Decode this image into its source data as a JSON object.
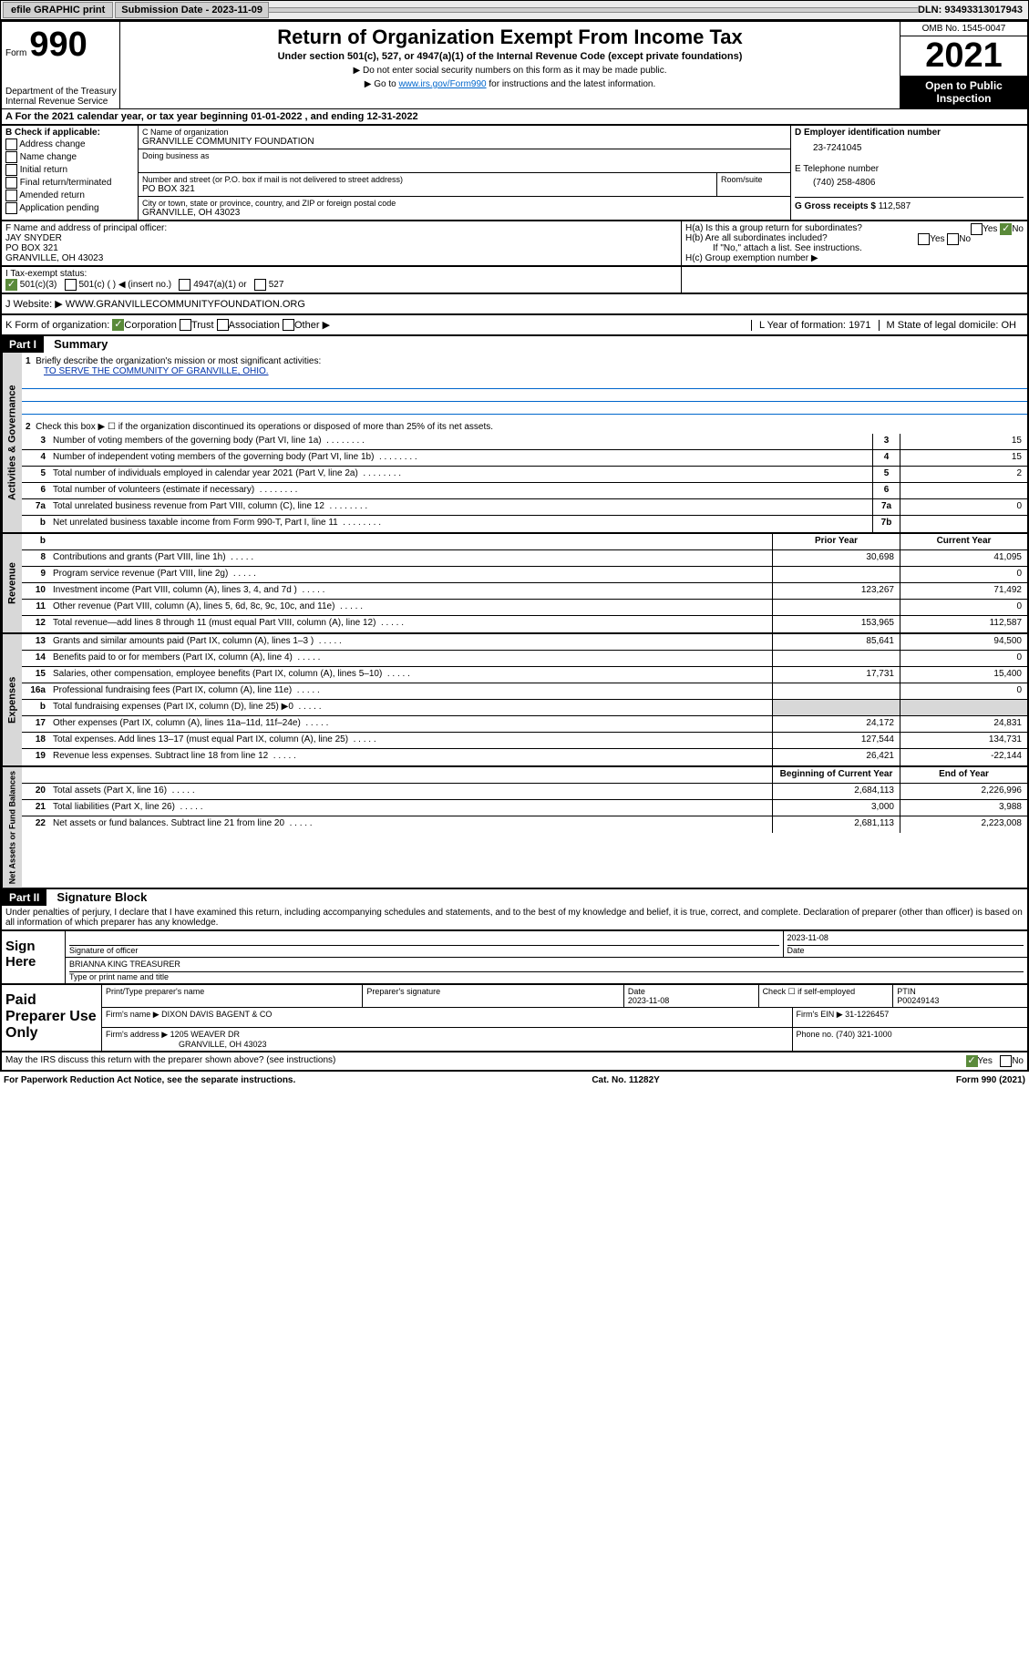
{
  "top_bar": {
    "efile": "efile GRAPHIC print",
    "sub_label": "Submission Date - 2023-11-09",
    "dln": "DLN: 93493313017943"
  },
  "header": {
    "form_word": "Form",
    "form_num": "990",
    "dept": "Department of the Treasury\nInternal Revenue Service",
    "title": "Return of Organization Exempt From Income Tax",
    "subtitle": "Under section 501(c), 527, or 4947(a)(1) of the Internal Revenue Code (except private foundations)",
    "note1": "▶ Do not enter social security numbers on this form as it may be made public.",
    "note2_pre": "▶ Go to ",
    "note2_link": "www.irs.gov/Form990",
    "note2_post": " for instructions and the latest information.",
    "omb": "OMB No. 1545-0047",
    "year": "2021",
    "inspect": "Open to Public Inspection"
  },
  "row_a": "A For the 2021 calendar year, or tax year beginning 01-01-2022  , and ending 12-31-2022",
  "box_b": {
    "label": "B Check if applicable:",
    "items": [
      "Address change",
      "Name change",
      "Initial return",
      "Final return/terminated",
      "Amended return",
      "Application pending"
    ]
  },
  "box_c": {
    "name_label": "C Name of organization",
    "name": "GRANVILLE COMMUNITY FOUNDATION",
    "dba_label": "Doing business as",
    "street_label": "Number and street (or P.O. box if mail is not delivered to street address)",
    "room_label": "Room/suite",
    "street": "PO BOX 321",
    "city_label": "City or town, state or province, country, and ZIP or foreign postal code",
    "city": "GRANVILLE, OH  43023"
  },
  "box_d": {
    "label": "D Employer identification number",
    "val": "23-7241045"
  },
  "box_e": {
    "label": "E Telephone number",
    "val": "(740) 258-4806"
  },
  "box_g": {
    "label": "G Gross receipts $",
    "val": "112,587"
  },
  "box_f": {
    "label": "F Name and address of principal officer:",
    "name": "JAY SNYDER",
    "addr1": "PO BOX 321",
    "addr2": "GRANVILLE, OH  43023"
  },
  "box_h": {
    "ha": "H(a)  Is this a group return for subordinates?",
    "hb": "H(b)  Are all subordinates included?",
    "hb_note": "If \"No,\" attach a list. See instructions.",
    "hc": "H(c)  Group exemption number ▶",
    "yes": "Yes",
    "no": "No"
  },
  "box_i": {
    "label": "I  Tax-exempt status:",
    "opts": [
      "501(c)(3)",
      "501(c) (  ) ◀ (insert no.)",
      "4947(a)(1) or",
      "527"
    ]
  },
  "box_j": {
    "label": "J  Website: ▶",
    "val": "WWW.GRANVILLECOMMUNITYFOUNDATION.ORG"
  },
  "box_k": {
    "label": "K Form of organization:",
    "opts": [
      "Corporation",
      "Trust",
      "Association",
      "Other ▶"
    ]
  },
  "box_l": {
    "label": "L Year of formation:",
    "val": "1971"
  },
  "box_m": {
    "label": "M State of legal domicile:",
    "val": "OH"
  },
  "part1": {
    "header": "Part I",
    "title": "Summary"
  },
  "summary": {
    "q1": "Briefly describe the organization's mission or most significant activities:",
    "q1_val": "TO SERVE THE COMMUNITY OF GRANVILLE, OHIO.",
    "q2": "Check this box ▶ ☐ if the organization discontinued its operations or disposed of more than 25% of its net assets.",
    "rows_gov": [
      {
        "n": "3",
        "label": "Number of voting members of the governing body (Part VI, line 1a)",
        "box": "3",
        "val": "15"
      },
      {
        "n": "4",
        "label": "Number of independent voting members of the governing body (Part VI, line 1b)",
        "box": "4",
        "val": "15"
      },
      {
        "n": "5",
        "label": "Total number of individuals employed in calendar year 2021 (Part V, line 2a)",
        "box": "5",
        "val": "2"
      },
      {
        "n": "6",
        "label": "Total number of volunteers (estimate if necessary)",
        "box": "6",
        "val": ""
      },
      {
        "n": "7a",
        "label": "Total unrelated business revenue from Part VIII, column (C), line 12",
        "box": "7a",
        "val": "0"
      },
      {
        "n": "b",
        "label": "Net unrelated business taxable income from Form 990-T, Part I, line 11",
        "box": "7b",
        "val": ""
      }
    ],
    "col_prior": "Prior Year",
    "col_current": "Current Year",
    "rows_rev": [
      {
        "n": "8",
        "label": "Contributions and grants (Part VIII, line 1h)",
        "p": "30,698",
        "c": "41,095"
      },
      {
        "n": "9",
        "label": "Program service revenue (Part VIII, line 2g)",
        "p": "",
        "c": "0"
      },
      {
        "n": "10",
        "label": "Investment income (Part VIII, column (A), lines 3, 4, and 7d )",
        "p": "123,267",
        "c": "71,492"
      },
      {
        "n": "11",
        "label": "Other revenue (Part VIII, column (A), lines 5, 6d, 8c, 9c, 10c, and 11e)",
        "p": "",
        "c": "0"
      },
      {
        "n": "12",
        "label": "Total revenue—add lines 8 through 11 (must equal Part VIII, column (A), line 12)",
        "p": "153,965",
        "c": "112,587"
      }
    ],
    "rows_exp": [
      {
        "n": "13",
        "label": "Grants and similar amounts paid (Part IX, column (A), lines 1–3 )",
        "p": "85,641",
        "c": "94,500"
      },
      {
        "n": "14",
        "label": "Benefits paid to or for members (Part IX, column (A), line 4)",
        "p": "",
        "c": "0"
      },
      {
        "n": "15",
        "label": "Salaries, other compensation, employee benefits (Part IX, column (A), lines 5–10)",
        "p": "17,731",
        "c": "15,400"
      },
      {
        "n": "16a",
        "label": "Professional fundraising fees (Part IX, column (A), line 11e)",
        "p": "",
        "c": "0"
      },
      {
        "n": "b",
        "label": "Total fundraising expenses (Part IX, column (D), line 25) ▶0",
        "p": "__gray__",
        "c": "__gray__"
      },
      {
        "n": "17",
        "label": "Other expenses (Part IX, column (A), lines 11a–11d, 11f–24e)",
        "p": "24,172",
        "c": "24,831"
      },
      {
        "n": "18",
        "label": "Total expenses. Add lines 13–17 (must equal Part IX, column (A), line 25)",
        "p": "127,544",
        "c": "134,731"
      },
      {
        "n": "19",
        "label": "Revenue less expenses. Subtract line 18 from line 12",
        "p": "26,421",
        "c": "-22,144"
      }
    ],
    "col_begin": "Beginning of Current Year",
    "col_end": "End of Year",
    "rows_net": [
      {
        "n": "20",
        "label": "Total assets (Part X, line 16)",
        "p": "2,684,113",
        "c": "2,226,996"
      },
      {
        "n": "21",
        "label": "Total liabilities (Part X, line 26)",
        "p": "3,000",
        "c": "3,988"
      },
      {
        "n": "22",
        "label": "Net assets or fund balances. Subtract line 21 from line 20",
        "p": "2,681,113",
        "c": "2,223,008"
      }
    ],
    "vert_gov": "Activities & Governance",
    "vert_rev": "Revenue",
    "vert_exp": "Expenses",
    "vert_net": "Net Assets or Fund Balances"
  },
  "part2": {
    "header": "Part II",
    "title": "Signature Block"
  },
  "sig": {
    "penalty": "Under penalties of perjury, I declare that I have examined this return, including accompanying schedules and statements, and to the best of my knowledge and belief, it is true, correct, and complete. Declaration of preparer (other than officer) is based on all information of which preparer has any knowledge.",
    "sign_here": "Sign Here",
    "sig_officer": "Signature of officer",
    "date": "2023-11-08",
    "date_label": "Date",
    "name": "BRIANNA KING TREASURER",
    "name_label": "Type or print name and title"
  },
  "prep": {
    "title": "Paid Preparer Use Only",
    "name_label": "Print/Type preparer's name",
    "sig_label": "Preparer's signature",
    "date_label": "Date",
    "date": "2023-11-08",
    "check_label": "Check ☐ if self-employed",
    "ptin_label": "PTIN",
    "ptin": "P00249143",
    "firm_name_label": "Firm's name    ▶",
    "firm_name": "DIXON DAVIS BAGENT & CO",
    "firm_ein_label": "Firm's EIN ▶",
    "firm_ein": "31-1226457",
    "firm_addr_label": "Firm's address ▶",
    "firm_addr1": "1205 WEAVER DR",
    "firm_addr2": "GRANVILLE, OH  43023",
    "phone_label": "Phone no.",
    "phone": "(740) 321-1000"
  },
  "discuss": {
    "label": "May the IRS discuss this return with the preparer shown above? (see instructions)",
    "yes": "Yes",
    "no": "No"
  },
  "footer": {
    "left": "For Paperwork Reduction Act Notice, see the separate instructions.",
    "center": "Cat. No. 11282Y",
    "right": "Form 990 (2021)"
  }
}
